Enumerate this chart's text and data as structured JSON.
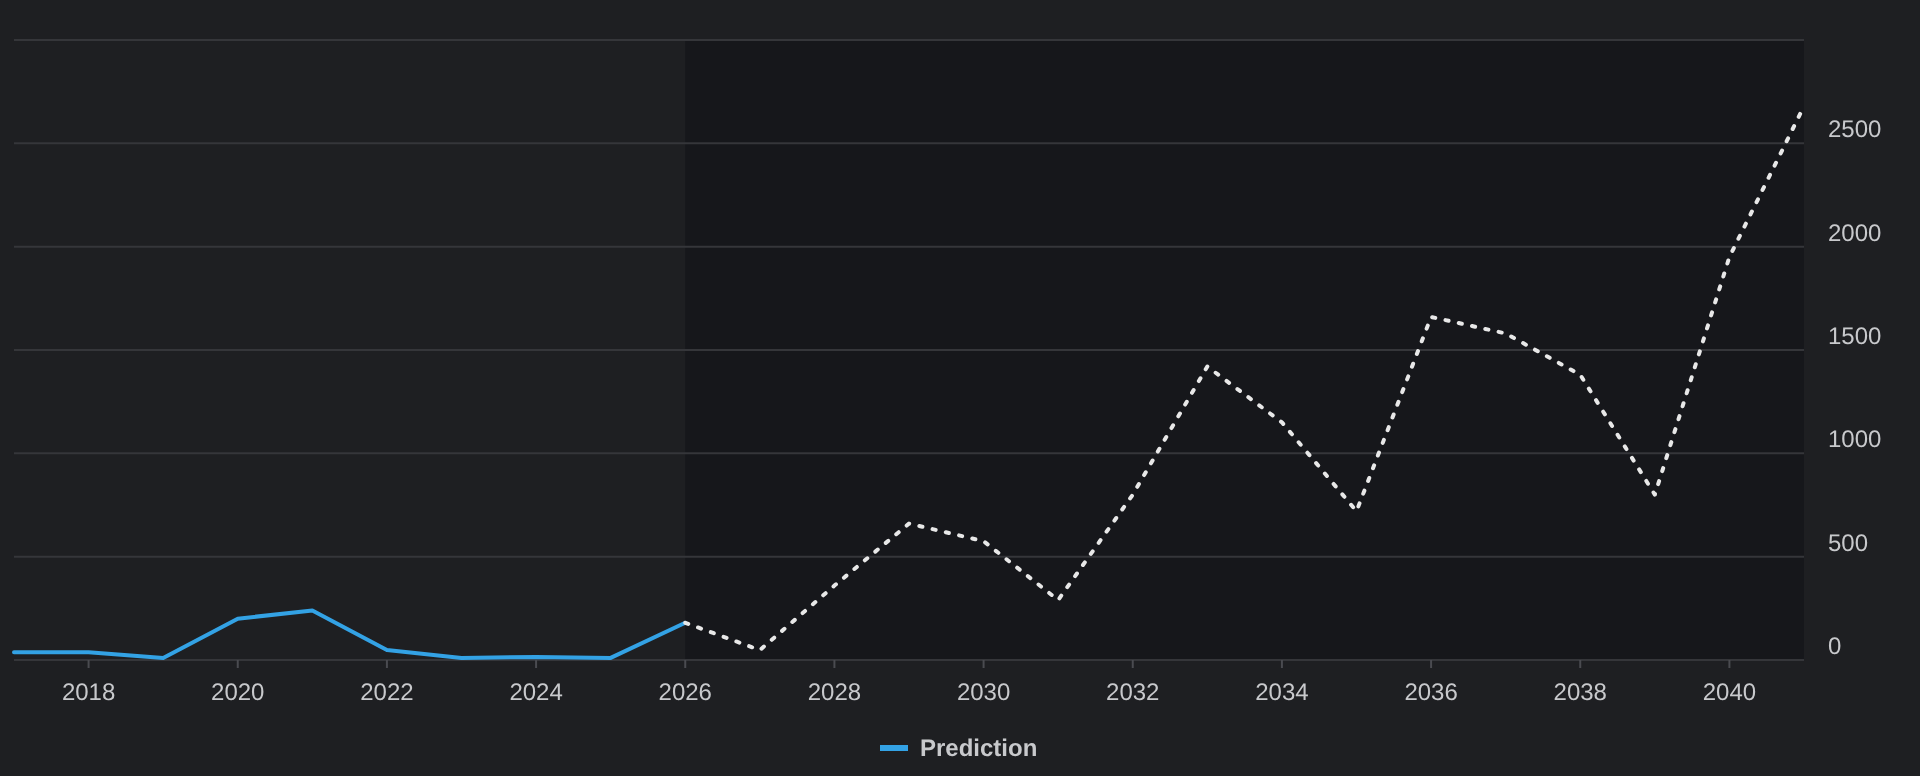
{
  "chart_data": {
    "type": "line",
    "x": [
      2017,
      2018,
      2019,
      2020,
      2021,
      2022,
      2023,
      2024,
      2025,
      2026
    ],
    "series": [
      {
        "name": "Prediction",
        "color": "#33a2e5",
        "line_style": "solid",
        "values": [
          38,
          38,
          10,
          200,
          240,
          48,
          10,
          15,
          10,
          180
        ]
      },
      {
        "color": "#e8e8e8",
        "line_style": "dotted",
        "x": [
          2026,
          2027,
          2028,
          2029,
          2030,
          2031,
          2032,
          2033,
          2034,
          2035,
          2036,
          2037,
          2038,
          2039,
          2040,
          2041
        ],
        "values": [
          180,
          48,
          360,
          660,
          575,
          290,
          800,
          1420,
          1150,
          720,
          1660,
          1580,
          1380,
          800,
          1950,
          2680
        ]
      }
    ],
    "xlim": [
      2017,
      2041
    ],
    "xticks": [
      2018,
      2020,
      2022,
      2024,
      2026,
      2028,
      2030,
      2032,
      2034,
      2036,
      2038,
      2040
    ],
    "ylim": [
      0,
      3000
    ],
    "yticks": [
      0,
      500,
      1000,
      1500,
      2000,
      2500,
      {
        "value": 3000,
        "label": null
      }
    ],
    "grid": "y",
    "legend": "bottom",
    "bands": [
      {
        "axis": "x",
        "from": 2026,
        "to": 2041,
        "color": "#16171b"
      }
    ]
  }
}
